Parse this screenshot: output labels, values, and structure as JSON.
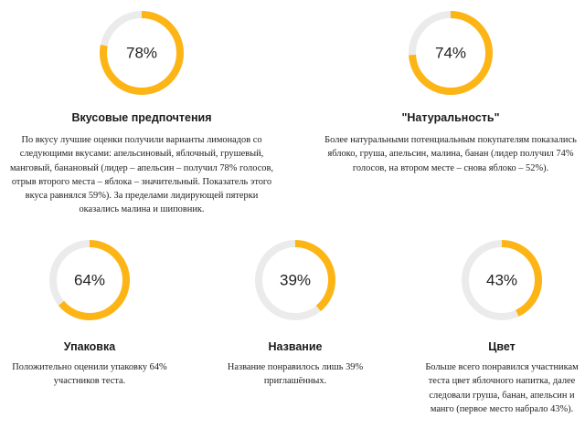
{
  "colors": {
    "accent": "#FDB515",
    "track": "#EBEBEB"
  },
  "stats": [
    {
      "percent": 78,
      "percent_label": "78%",
      "title": "Вкусовые предпочтения",
      "description": "По вкусу лучшие оценки получили варианты лимонадов со следующими вкусами: апельсиновый, яблочный, грушевый, манговый, банановый (лидер – апельсин – получил 78% голосов, отрыв второго места – яблока – значительный. Показатель этого вкуса равнялся 59%). За пределами лидирующей пятерки оказались малина и шиповник."
    },
    {
      "percent": 74,
      "percent_label": "74%",
      "title": "\"Натуральность\"",
      "description": "Более натуральными потенциальным покупателям показались яблоко, груша, апельсин, малина, банан (лидер получил 74% голосов, на втором месте – снова яблоко – 52%)."
    },
    {
      "percent": 64,
      "percent_label": "64%",
      "title": "Упаковка",
      "description": "Положительно оценили упаковку 64% участников теста."
    },
    {
      "percent": 39,
      "percent_label": "39%",
      "title": "Название",
      "description": "Название понравилось лишь 39% приглашённых."
    },
    {
      "percent": 43,
      "percent_label": "43%",
      "title": "Цвет",
      "description": "Больше всего понравился участникам теста цвет яблочного напитка, далее следовали груша, банан, апельсин и манго (первое место набрало 43%)."
    }
  ]
}
